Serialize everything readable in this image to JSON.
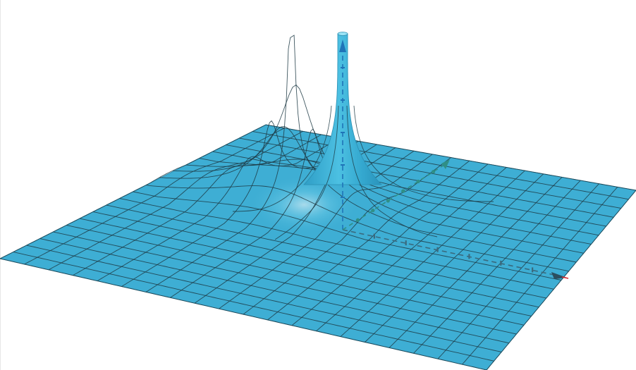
{
  "view": {
    "kind": "3d-graphics-view",
    "surface_color": "#3eaed4",
    "surface_edge_color": "#2a8fb3",
    "grid_line_color": "#1d3a44",
    "background_color": "#ffffff",
    "axes": {
      "x": {
        "color": "#3a6a7e",
        "arrow_color": "#2b4f5f",
        "tip_color": "#d7262b"
      },
      "y": {
        "color": "#2f8f86"
      },
      "z": {
        "color": "#1f74b8"
      }
    }
  }
}
